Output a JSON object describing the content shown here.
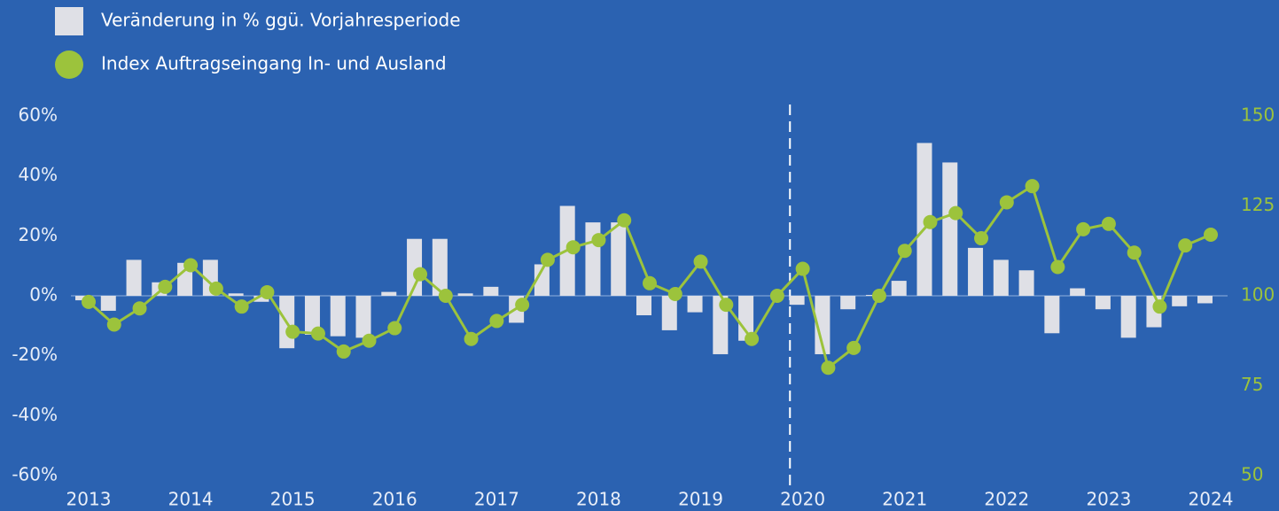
{
  "chart_data": {
    "type": "bar-line",
    "categories": [
      "2013",
      null,
      null,
      null,
      "2014",
      null,
      null,
      null,
      "2015",
      null,
      null,
      null,
      "2016",
      null,
      null,
      null,
      "2017",
      null,
      null,
      null,
      "2018",
      null,
      null,
      null,
      "2019",
      null,
      null,
      null,
      "2020",
      null,
      null,
      null,
      "2021",
      null,
      null,
      null,
      "2022",
      null,
      null,
      null,
      "2023",
      null,
      null,
      null,
      "2024"
    ],
    "series": [
      {
        "name": "Veränderung in % ggü. Vorjahresperiode",
        "type": "bar",
        "color": "#dfe0e6",
        "axis": "y",
        "values": [
          -1.5,
          -5,
          12,
          4.5,
          11,
          12,
          0.8,
          -2,
          -17.5,
          -13,
          -13.5,
          -14,
          1.3,
          19,
          19,
          0.8,
          3,
          -9,
          10.5,
          30,
          24.5,
          24.5,
          -6.5,
          -11.5,
          -5.5,
          -19.5,
          -15,
          0,
          -3,
          -19.5,
          -4.5,
          0.3,
          5,
          51,
          44.5,
          16,
          12,
          8.5,
          -12.5,
          2.5,
          -4.5,
          -14,
          -10.5,
          -3.5,
          -2.5
        ]
      },
      {
        "name": "Index Auftragseingang In- und Ausland",
        "type": "line",
        "color": "#9cc33c",
        "axis": "y2",
        "values": [
          98.3,
          92,
          96.5,
          102.5,
          108.5,
          102,
          97,
          101,
          90,
          89.5,
          84.5,
          87.5,
          91,
          106,
          100,
          88,
          93,
          97.5,
          110,
          113.5,
          115.5,
          121,
          103.5,
          100.5,
          109.5,
          97.5,
          88,
          100,
          107.5,
          80,
          85.5,
          100,
          112.5,
          120.5,
          123,
          116,
          126,
          130.5,
          108,
          118.5,
          120,
          112,
          97,
          114,
          117
        ]
      }
    ],
    "ylim": [
      -60,
      60
    ],
    "yticks": [
      {
        "value": -60,
        "label": "-60%"
      },
      {
        "value": -40,
        "label": "-40%"
      },
      {
        "value": -20,
        "label": "-20%"
      },
      {
        "value": 0,
        "label": "0%"
      },
      {
        "value": 20,
        "label": "20%"
      },
      {
        "value": 40,
        "label": "40%"
      },
      {
        "value": 60,
        "label": "60%"
      }
    ],
    "y2lim": [
      50,
      150
    ],
    "y2ticks": [
      50,
      75,
      100,
      125,
      150
    ],
    "legend": "top-left"
  }
}
